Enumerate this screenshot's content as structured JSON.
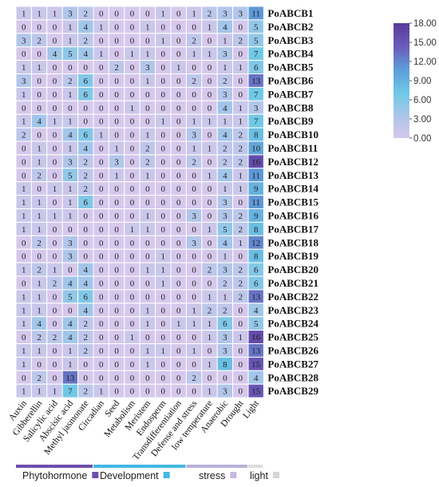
{
  "chart_data": {
    "type": "heatmap",
    "columns": [
      "Auxin",
      "Gibberellin",
      "Salicylic acid",
      "Abscisic acid",
      "Methyl jasmonate",
      "Circadian",
      "Seed",
      "Metabolism",
      "Meristem",
      "Endosperm",
      "Transdifferentiation",
      "Defense and stress",
      "low temperature",
      "Anaerobic",
      "Drought",
      "Light"
    ],
    "rows": [
      "PoABCB1",
      "PoABCB2",
      "PoABCB3",
      "PoABCB4",
      "PoABCB5",
      "PoABCB6",
      "PoABCB7",
      "PoABCB8",
      "PoABCB9",
      "PoABCB10",
      "PoABCB11",
      "PoABCB12",
      "PoABCB13",
      "PoABCB14",
      "PoABCB15",
      "PoABCB16",
      "PoABCB17",
      "PoABCB18",
      "PoABCB19",
      "PoABCB20",
      "PoABCB21",
      "PoABCB22",
      "PoABCB23",
      "PoABCB24",
      "PoABCB25",
      "PoABCB26",
      "PoABCB27",
      "PoABCB28",
      "PoABCB29"
    ],
    "values": [
      [
        1,
        1,
        1,
        3,
        2,
        0,
        0,
        0,
        0,
        1,
        0,
        1,
        2,
        3,
        3,
        11
      ],
      [
        0,
        0,
        0,
        1,
        4,
        1,
        0,
        0,
        1,
        0,
        0,
        0,
        1,
        4,
        0,
        5
      ],
      [
        3,
        2,
        0,
        1,
        2,
        0,
        0,
        0,
        0,
        1,
        0,
        2,
        0,
        1,
        2,
        5
      ],
      [
        0,
        0,
        4,
        5,
        4,
        1,
        0,
        1,
        1,
        0,
        0,
        1,
        1,
        3,
        0,
        7
      ],
      [
        1,
        1,
        0,
        0,
        0,
        0,
        2,
        0,
        3,
        0,
        1,
        0,
        0,
        1,
        1,
        6
      ],
      [
        3,
        0,
        0,
        2,
        6,
        0,
        0,
        0,
        1,
        0,
        0,
        2,
        0,
        2,
        0,
        13
      ],
      [
        1,
        0,
        0,
        1,
        6,
        0,
        0,
        0,
        0,
        0,
        0,
        0,
        0,
        3,
        0,
        7
      ],
      [
        0,
        0,
        0,
        0,
        0,
        0,
        0,
        1,
        0,
        0,
        0,
        0,
        0,
        4,
        1,
        3
      ],
      [
        1,
        4,
        1,
        1,
        0,
        0,
        0,
        0,
        0,
        1,
        0,
        1,
        1,
        1,
        1,
        7
      ],
      [
        2,
        0,
        0,
        4,
        6,
        1,
        0,
        0,
        1,
        0,
        0,
        3,
        0,
        4,
        2,
        8
      ],
      [
        0,
        1,
        0,
        1,
        4,
        0,
        1,
        0,
        2,
        0,
        0,
        1,
        1,
        2,
        2,
        10
      ],
      [
        0,
        1,
        0,
        3,
        2,
        0,
        3,
        0,
        2,
        0,
        0,
        2,
        0,
        2,
        2,
        16
      ],
      [
        0,
        2,
        0,
        5,
        2,
        0,
        1,
        0,
        1,
        0,
        0,
        0,
        1,
        4,
        1,
        11
      ],
      [
        1,
        0,
        1,
        1,
        2,
        0,
        0,
        0,
        0,
        0,
        0,
        0,
        0,
        1,
        1,
        9
      ],
      [
        1,
        1,
        0,
        1,
        6,
        0,
        0,
        0,
        0,
        0,
        0,
        0,
        0,
        3,
        0,
        11
      ],
      [
        1,
        1,
        1,
        1,
        0,
        0,
        0,
        0,
        1,
        0,
        0,
        3,
        0,
        3,
        2,
        9
      ],
      [
        1,
        1,
        0,
        0,
        0,
        0,
        0,
        1,
        1,
        0,
        0,
        0,
        1,
        5,
        2,
        8
      ],
      [
        0,
        2,
        0,
        3,
        0,
        0,
        0,
        0,
        0,
        0,
        0,
        3,
        0,
        4,
        1,
        12
      ],
      [
        0,
        0,
        0,
        3,
        0,
        0,
        0,
        0,
        0,
        1,
        0,
        0,
        0,
        1,
        0,
        8
      ],
      [
        1,
        2,
        1,
        0,
        4,
        0,
        0,
        0,
        1,
        1,
        0,
        0,
        2,
        3,
        2,
        6
      ],
      [
        0,
        1,
        2,
        4,
        4,
        0,
        0,
        0,
        0,
        1,
        0,
        0,
        0,
        2,
        2,
        6
      ],
      [
        1,
        1,
        0,
        5,
        6,
        0,
        0,
        0,
        0,
        0,
        0,
        0,
        1,
        1,
        2,
        13
      ],
      [
        1,
        1,
        0,
        0,
        4,
        0,
        0,
        0,
        1,
        0,
        0,
        1,
        2,
        2,
        0,
        4
      ],
      [
        1,
        4,
        0,
        4,
        2,
        0,
        0,
        0,
        1,
        0,
        1,
        1,
        1,
        6,
        0,
        5
      ],
      [
        0,
        2,
        2,
        4,
        2,
        0,
        0,
        1,
        0,
        0,
        0,
        0,
        1,
        3,
        1,
        16
      ],
      [
        1,
        1,
        0,
        1,
        2,
        0,
        0,
        0,
        1,
        1,
        0,
        1,
        0,
        3,
        0,
        13
      ],
      [
        1,
        0,
        0,
        1,
        0,
        0,
        0,
        0,
        1,
        0,
        0,
        0,
        1,
        8,
        0,
        15
      ],
      [
        0,
        2,
        0,
        13,
        0,
        0,
        0,
        0,
        0,
        0,
        0,
        2,
        0,
        0,
        0,
        4
      ],
      [
        1,
        1,
        1,
        7,
        2,
        1,
        0,
        0,
        0,
        0,
        0,
        0,
        1,
        3,
        0,
        15
      ]
    ],
    "colorbar": {
      "min": 0,
      "max": 18,
      "ticks": [
        "18.00",
        "15.00",
        "12.00",
        "9.00",
        "6.00",
        "3.00",
        "0.00"
      ],
      "colors": [
        "#d6c8ec",
        "#a9c6ea",
        "#6ec8e6",
        "#5d9cd8",
        "#6b5ab8",
        "#5a3b9a"
      ]
    },
    "groups": [
      {
        "label": "Phytohormone",
        "color": "#6d4fae",
        "swatch": "#6d4fae",
        "start": 0,
        "end": 4
      },
      {
        "label": "Development",
        "color": "#45b7e3",
        "swatch": "#45b7e3",
        "start": 5,
        "end": 10
      },
      {
        "label": "stress",
        "color": "#b8b1d9",
        "swatch": "#c6b9e3",
        "start": 11,
        "end": 14
      },
      {
        "label": "light",
        "color": "#dddddd",
        "swatch": "#d6d6d6",
        "start": 15,
        "end": 15
      }
    ]
  }
}
